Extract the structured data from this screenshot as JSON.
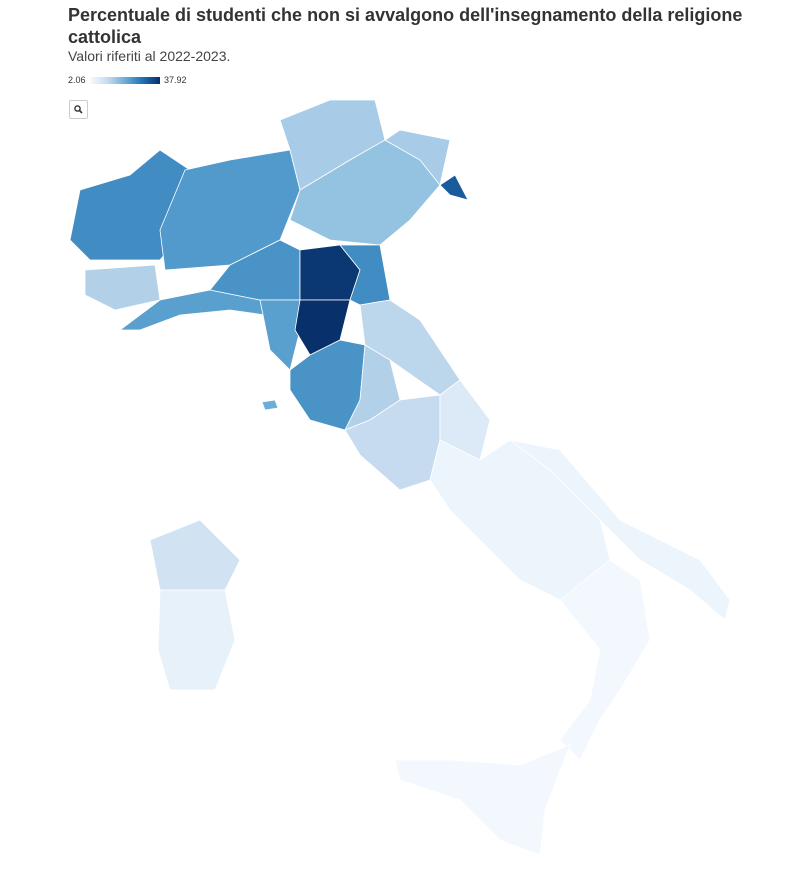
{
  "chart_data": {
    "type": "choropleth",
    "title": "Percentuale di studenti che non si avvalgono dell'insegnamento della religione cattolica",
    "subtitle": "Valori riferiti al 2022-2023.",
    "clim": [
      2.06,
      37.92
    ],
    "colorscale": [
      "#f7fbff",
      "#c6dbef",
      "#6baed6",
      "#2171b5",
      "#08306b"
    ],
    "values": [
      25,
      13,
      22,
      23,
      14,
      16,
      14,
      32,
      24,
      37,
      25,
      22,
      38,
      24,
      12,
      13,
      11,
      7,
      4,
      4,
      3,
      3,
      9,
      5,
      20
    ]
  }
}
